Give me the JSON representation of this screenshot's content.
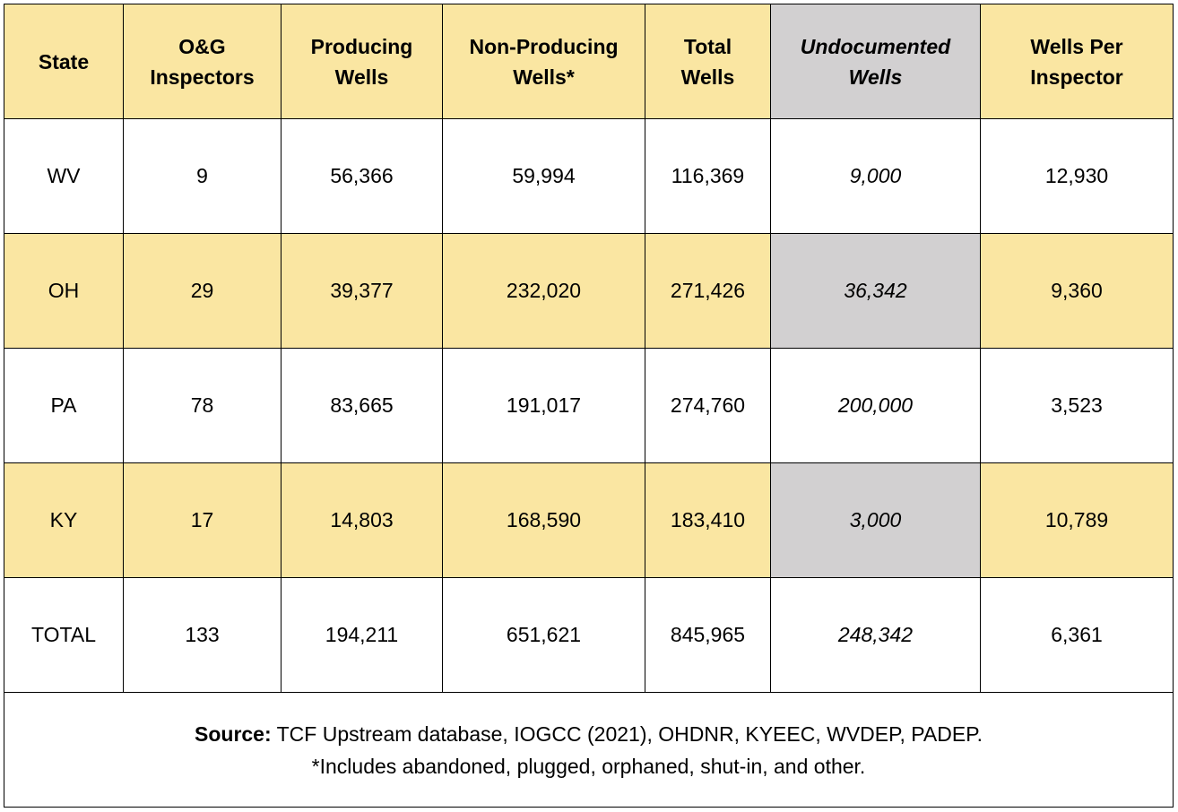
{
  "header": {
    "state": "State",
    "inspectors": [
      "O&G",
      "Inspectors"
    ],
    "producing": [
      "Producing",
      "Wells"
    ],
    "non_producing": [
      "Non-Producing",
      "Wells*"
    ],
    "total": [
      "Total",
      "Wells"
    ],
    "undocumented": [
      "Undocumented",
      "Wells"
    ],
    "per_inspector": [
      "Wells Per",
      "Inspector"
    ]
  },
  "rows": [
    {
      "state": "WV",
      "inspectors": "9",
      "producing": "56,366",
      "non_producing": "59,994",
      "total": "116,369",
      "undocumented": "9,000",
      "per_inspector": "12,930"
    },
    {
      "state": "OH",
      "inspectors": "29",
      "producing": "39,377",
      "non_producing": "232,020",
      "total": "271,426",
      "undocumented": "36,342",
      "per_inspector": "9,360"
    },
    {
      "state": "PA",
      "inspectors": "78",
      "producing": "83,665",
      "non_producing": "191,017",
      "total": "274,760",
      "undocumented": "200,000",
      "per_inspector": "3,523"
    },
    {
      "state": "KY",
      "inspectors": "17",
      "producing": "14,803",
      "non_producing": "168,590",
      "total": "183,410",
      "undocumented": "3,000",
      "per_inspector": "10,789"
    },
    {
      "state": "TOTAL",
      "inspectors": "133",
      "producing": "194,211",
      "non_producing": "651,621",
      "total": "845,965",
      "undocumented": "248,342",
      "per_inspector": "6,361"
    }
  ],
  "footer": {
    "source_label": "Source:",
    "source_text": " TCF Upstream database, IOGCC (2021), OHDNR, KYEEC, WVDEP, PADEP.",
    "note": "*Includes abandoned, plugged, orphaned, shut-in, and other."
  },
  "colors": {
    "header_fill": "#fae6a2",
    "alt_row_fill": "#fae6a2",
    "undocumented_fill": "#d2d0d1",
    "border": "#000000"
  }
}
